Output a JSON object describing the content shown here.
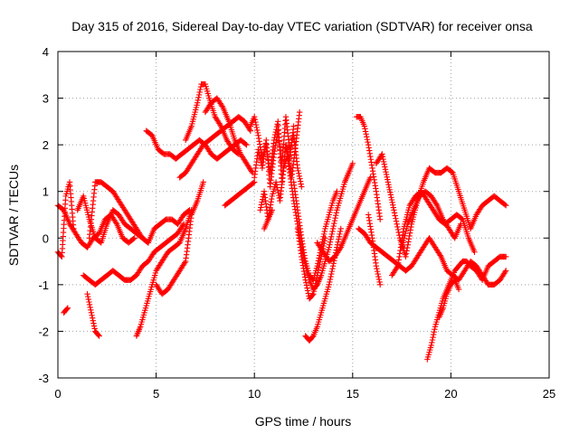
{
  "chart_data": {
    "type": "scatter",
    "title": "Day 315 of 2016, Sidereal Day-to-day VTEC variation (SDTVAR) for receiver onsa",
    "xlabel": "GPS time / hours",
    "ylabel": "SDTVAR / TECUs",
    "xlim": [
      0,
      25
    ],
    "ylim": [
      -3,
      4
    ],
    "xticks": [
      "0",
      "5",
      "10",
      "15",
      "20",
      "25"
    ],
    "yticks": [
      "-3",
      "-2",
      "-1",
      "0",
      "1",
      "2",
      "3",
      "4"
    ],
    "grid": true,
    "marker": "plus",
    "color": "#ff0000",
    "series": [
      {
        "x": [
          0.0,
          0.3,
          0.6,
          0.9,
          1.2,
          1.5,
          1.8,
          2.1,
          2.4,
          2.7,
          3.0,
          3.3,
          3.6,
          3.9
        ],
        "y": [
          0.7,
          0.6,
          0.3,
          0.1,
          -0.1,
          -0.2,
          0.0,
          0.1,
          0.4,
          0.5,
          0.3,
          0.0,
          -0.1,
          0.0
        ]
      },
      {
        "x": [
          0.0,
          0.2,
          0.4,
          0.6,
          0.8
        ],
        "y": [
          -0.3,
          -0.4,
          0.9,
          1.2,
          0.2
        ]
      },
      {
        "x": [
          0.3,
          0.5
        ],
        "y": [
          -1.6,
          -1.5
        ]
      },
      {
        "x": [
          1.0,
          1.3,
          1.6,
          1.9,
          2.2,
          2.5,
          2.8,
          3.1,
          3.4,
          3.7,
          4.0,
          4.3,
          4.6,
          4.9,
          5.2,
          5.5,
          5.8,
          6.1,
          6.4,
          6.7
        ],
        "y": [
          0.6,
          0.9,
          0.4,
          0.0,
          -0.1,
          0.3,
          0.6,
          0.5,
          0.3,
          0.2,
          0.1,
          0.0,
          -0.1,
          0.2,
          0.3,
          0.4,
          0.4,
          0.3,
          0.5,
          0.6
        ]
      },
      {
        "x": [
          1.6,
          1.9,
          2.2,
          2.5,
          2.8,
          3.1,
          3.4,
          3.7,
          4.0,
          4.3,
          4.6
        ],
        "y": [
          0.0,
          1.2,
          1.2,
          1.1,
          1.0,
          0.8,
          0.6,
          0.4,
          0.2,
          0.0,
          -0.1
        ]
      },
      {
        "x": [
          1.3,
          1.6,
          1.9,
          2.2,
          2.5,
          2.8,
          3.1,
          3.4,
          3.7,
          4.0,
          4.3,
          4.6,
          4.9,
          5.2,
          5.5,
          5.8,
          6.1,
          6.4
        ],
        "y": [
          -0.8,
          -0.9,
          -1.0,
          -0.9,
          -0.8,
          -0.7,
          -0.8,
          -0.9,
          -0.9,
          -0.8,
          -0.6,
          -0.5,
          -0.3,
          -0.2,
          -0.1,
          0.0,
          0.1,
          0.3
        ]
      },
      {
        "x": [
          1.5,
          1.7,
          1.9,
          2.1
        ],
        "y": [
          -1.2,
          -1.6,
          -2.0,
          -2.1
        ]
      },
      {
        "x": [
          4.0,
          4.2,
          4.4,
          4.6,
          4.8,
          5.0,
          5.3,
          5.6,
          5.9,
          6.2,
          6.5,
          6.8
        ],
        "y": [
          -2.1,
          -1.9,
          -1.6,
          -1.3,
          -1.0,
          -0.7,
          -0.5,
          -0.3,
          -0.2,
          -0.1,
          0.2,
          0.6
        ]
      },
      {
        "x": [
          5.0,
          5.3,
          5.6,
          5.9,
          6.2,
          6.5,
          6.8,
          7.1,
          7.4
        ],
        "y": [
          -1.0,
          -1.2,
          -1.1,
          -0.9,
          -0.7,
          -0.5,
          0.5,
          0.8,
          1.2
        ]
      },
      {
        "x": [
          4.5,
          4.8,
          5.1,
          5.4,
          5.7,
          6.0,
          6.3,
          6.6,
          6.9,
          7.2,
          7.5,
          7.8,
          8.1,
          8.4,
          8.7,
          9.0,
          9.3,
          9.6
        ],
        "y": [
          2.3,
          2.2,
          1.9,
          1.8,
          1.8,
          1.7,
          1.8,
          1.9,
          2.0,
          2.1,
          2.0,
          1.8,
          1.7,
          1.8,
          1.9,
          2.0,
          2.1,
          2.0
        ]
      },
      {
        "x": [
          6.2,
          6.5,
          6.8,
          7.1,
          7.4,
          7.7,
          8.0,
          8.3,
          8.6,
          8.9,
          9.2,
          9.5,
          9.8
        ],
        "y": [
          1.3,
          1.4,
          1.6,
          1.8,
          2.0,
          2.1,
          2.2,
          2.3,
          2.4,
          2.5,
          2.6,
          2.5,
          2.3
        ]
      },
      {
        "x": [
          6.5,
          6.8,
          7.1,
          7.3,
          7.5,
          7.7,
          8.0,
          8.3,
          8.6,
          8.9,
          9.2
        ],
        "y": [
          2.1,
          2.4,
          2.9,
          3.3,
          3.3,
          3.0,
          2.6,
          2.4,
          2.1,
          1.9,
          1.8
        ]
      },
      {
        "x": [
          7.5,
          7.8,
          8.1,
          8.4,
          8.7,
          9.0,
          9.3,
          9.6,
          9.9
        ],
        "y": [
          2.7,
          2.9,
          3.0,
          2.8,
          2.5,
          2.1,
          1.8,
          1.6,
          1.4
        ]
      },
      {
        "x": [
          8.5,
          8.8,
          9.1,
          9.4,
          9.7,
          10.0
        ],
        "y": [
          0.7,
          0.8,
          0.9,
          1.0,
          1.1,
          1.2
        ]
      },
      {
        "x": [
          10.0,
          10.2,
          10.4,
          10.6,
          10.8,
          11.0,
          11.2,
          11.4,
          11.6,
          11.8,
          12.0,
          12.2,
          12.4
        ],
        "y": [
          1.3,
          1.9,
          1.5,
          2.1,
          1.1,
          1.8,
          2.3,
          1.6,
          2.6,
          1.9,
          2.2,
          1.5,
          1.1
        ]
      },
      {
        "x": [
          9.8,
          10.0,
          10.2,
          10.4,
          10.6,
          10.8,
          11.0,
          11.2,
          11.4,
          11.6,
          11.8,
          12.0
        ],
        "y": [
          2.4,
          2.6,
          2.2,
          1.7,
          2.0,
          1.4,
          2.1,
          2.5,
          1.2,
          2.0,
          1.7,
          2.4
        ]
      },
      {
        "x": [
          10.3,
          10.5,
          10.7,
          10.9,
          11.1,
          11.3,
          11.5,
          11.7,
          11.9,
          12.1,
          12.3
        ],
        "y": [
          0.6,
          1.0,
          0.4,
          0.9,
          1.2,
          0.8,
          1.5,
          1.8,
          1.3,
          2.0,
          2.7
        ]
      },
      {
        "x": [
          10.5,
          10.7,
          10.9
        ],
        "y": [
          0.2,
          0.4,
          0.6
        ]
      },
      {
        "x": [
          11.6,
          11.8,
          12.0,
          12.2,
          12.4,
          12.6,
          12.8,
          13.0,
          13.2,
          13.4,
          13.6,
          13.8,
          14.0,
          14.2,
          14.4,
          14.6,
          14.8,
          15.0
        ],
        "y": [
          2.0,
          1.4,
          0.8,
          0.3,
          -0.2,
          -0.6,
          -0.9,
          -1.1,
          -1.0,
          -0.8,
          -0.5,
          -0.2,
          0.2,
          0.6,
          0.9,
          1.2,
          1.4,
          1.6
        ]
      },
      {
        "x": [
          12.0,
          12.2,
          12.4,
          12.6,
          12.8,
          13.0,
          13.2,
          13.4,
          13.6,
          13.8,
          14.0,
          14.2
        ],
        "y": [
          1.2,
          0.6,
          0.0,
          -0.5,
          -0.8,
          -0.9,
          -0.6,
          -0.2,
          0.2,
          0.5,
          0.8,
          1.0
        ]
      },
      {
        "x": [
          12.2,
          12.4,
          12.6,
          12.8,
          13.0,
          13.2,
          13.4,
          13.6
        ],
        "y": [
          0.2,
          -0.4,
          -0.9,
          -1.3,
          -1.2,
          -0.8,
          -0.4,
          0.0
        ]
      },
      {
        "x": [
          12.6,
          12.8,
          13.0,
          13.2,
          13.4,
          13.6,
          13.8,
          14.0,
          14.2,
          14.4
        ],
        "y": [
          -2.1,
          -2.2,
          -2.1,
          -1.9,
          -1.6,
          -1.3,
          -1.0,
          -0.6,
          -0.2,
          0.2
        ]
      },
      {
        "x": [
          13.2,
          13.5,
          13.8,
          14.1,
          14.4,
          14.7,
          15.0,
          15.3,
          15.6,
          15.9
        ],
        "y": [
          -0.1,
          -0.3,
          -0.5,
          -0.4,
          -0.2,
          0.1,
          0.4,
          0.7,
          1.0,
          1.3
        ]
      },
      {
        "x": [
          15.2,
          15.4,
          15.6,
          15.8,
          16.0,
          16.2,
          16.4
        ],
        "y": [
          2.6,
          2.6,
          2.4,
          2.0,
          1.5,
          1.0,
          0.4
        ]
      },
      {
        "x": [
          15.8,
          16.0,
          16.2,
          16.4
        ],
        "y": [
          0.5,
          0.0,
          -0.6,
          -1.0
        ]
      },
      {
        "x": [
          15.3,
          15.6,
          15.9,
          16.2,
          16.5,
          16.8,
          17.1,
          17.4,
          17.7,
          18.0,
          18.3,
          18.6,
          18.9,
          19.2,
          19.5,
          19.8,
          20.1,
          20.4,
          20.7,
          21.0,
          21.3,
          21.6,
          21.9,
          22.2,
          22.5,
          22.8
        ],
        "y": [
          0.2,
          0.1,
          -0.1,
          -0.2,
          -0.3,
          -0.4,
          -0.5,
          -0.6,
          -0.7,
          -0.6,
          -0.4,
          -0.2,
          0.0,
          -0.2,
          -0.4,
          -0.7,
          -0.8,
          -0.9,
          -0.7,
          -0.5,
          -0.6,
          -0.8,
          -1.0,
          -1.0,
          -0.9,
          -0.7
        ]
      },
      {
        "x": [
          16.2,
          16.5,
          16.8,
          17.1,
          17.4,
          17.7,
          18.0,
          18.3,
          18.6,
          18.9,
          19.2,
          19.5,
          19.8,
          20.1,
          20.4,
          20.7,
          21.0,
          21.3,
          21.6,
          21.9,
          22.2,
          22.5,
          22.8
        ],
        "y": [
          1.6,
          1.8,
          1.2,
          0.6,
          0.0,
          -0.4,
          0.3,
          0.8,
          1.2,
          1.5,
          1.4,
          1.4,
          1.5,
          1.4,
          1.0,
          0.6,
          0.2,
          0.5,
          0.7,
          0.8,
          0.9,
          0.8,
          0.7
        ]
      },
      {
        "x": [
          17.0,
          17.3,
          17.6,
          17.9,
          18.2,
          18.5,
          18.8,
          19.1,
          19.4,
          19.7,
          20.0,
          20.3,
          20.6,
          20.9,
          21.2
        ],
        "y": [
          -0.8,
          -0.6,
          0.2,
          0.7,
          0.9,
          1.0,
          0.8,
          0.6,
          0.4,
          0.3,
          0.4,
          0.5,
          0.4,
          0.0,
          -0.3
        ]
      },
      {
        "x": [
          17.5,
          17.8,
          18.1,
          18.4,
          18.7,
          19.0,
          19.3,
          19.6,
          19.9,
          20.2,
          20.5
        ],
        "y": [
          -0.2,
          0.3,
          0.6,
          0.9,
          1.0,
          0.9,
          0.7,
          0.4,
          0.2,
          0.0,
          0.3
        ]
      },
      {
        "x": [
          18.8,
          19.0,
          19.2,
          19.4,
          19.6,
          19.8,
          20.0,
          20.2,
          20.4,
          20.6,
          20.8,
          21.0,
          21.3,
          21.6,
          21.9,
          22.2,
          22.5,
          22.8
        ],
        "y": [
          -2.6,
          -2.3,
          -1.9,
          -1.6,
          -1.3,
          -1.1,
          -0.9,
          -0.7,
          -0.6,
          -0.5,
          -0.5,
          -0.6,
          -0.7,
          -0.9,
          -0.6,
          -0.5,
          -0.4,
          -0.4
        ]
      },
      {
        "x": [
          19.4,
          19.6,
          19.8,
          20.0,
          20.2,
          20.4
        ],
        "y": [
          -1.7,
          -1.5,
          -1.2,
          -1.0,
          -0.9,
          -1.1
        ]
      }
    ]
  }
}
